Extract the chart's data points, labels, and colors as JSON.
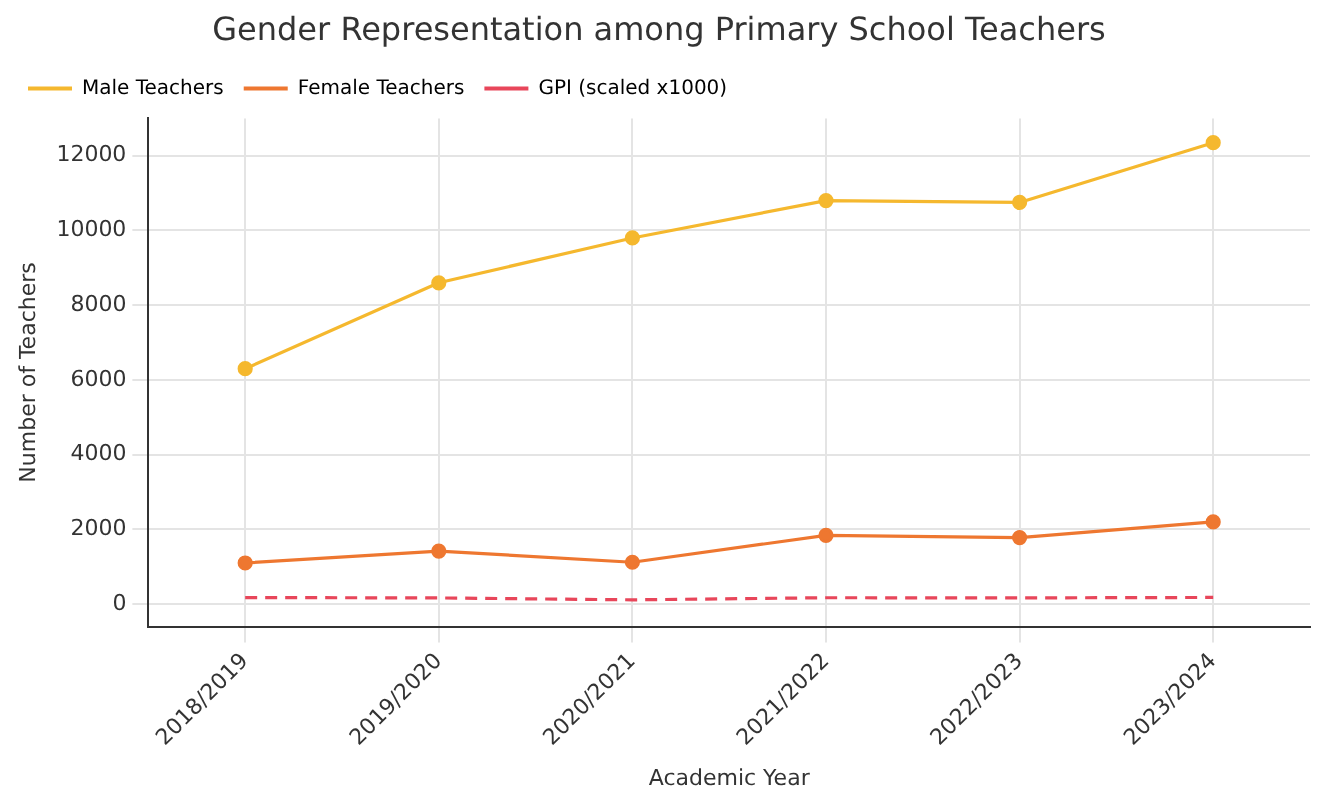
{
  "chart_data": {
    "type": "line",
    "title": "Gender Representation among Primary School Teachers",
    "xlabel": "Academic Year",
    "ylabel": "Number of Teachers",
    "categories": [
      "2018/2019",
      "2019/2020",
      "2020/2021",
      "2021/2022",
      "2022/2023",
      "2023/2024"
    ],
    "series": [
      {
        "name": "Male Teachers",
        "color": "#f5b82e",
        "values": [
          6300,
          8600,
          9800,
          10800,
          10750,
          12350
        ],
        "marker": "circle",
        "line_style": "solid"
      },
      {
        "name": "Female Teachers",
        "color": "#ee7730",
        "values": [
          1100,
          1420,
          1120,
          1840,
          1780,
          2200
        ],
        "marker": "circle",
        "line_style": "solid"
      },
      {
        "name": "GPI (scaled x1000)",
        "color": "#e8465a",
        "values": [
          175,
          165,
          114,
          170,
          166,
          178
        ],
        "marker": "none",
        "line_style": "dashed"
      }
    ],
    "ylim": [
      -600,
      13000
    ],
    "yticks": [
      0,
      2000,
      4000,
      6000,
      8000,
      10000,
      12000
    ],
    "grid": true,
    "legend": "top left"
  }
}
